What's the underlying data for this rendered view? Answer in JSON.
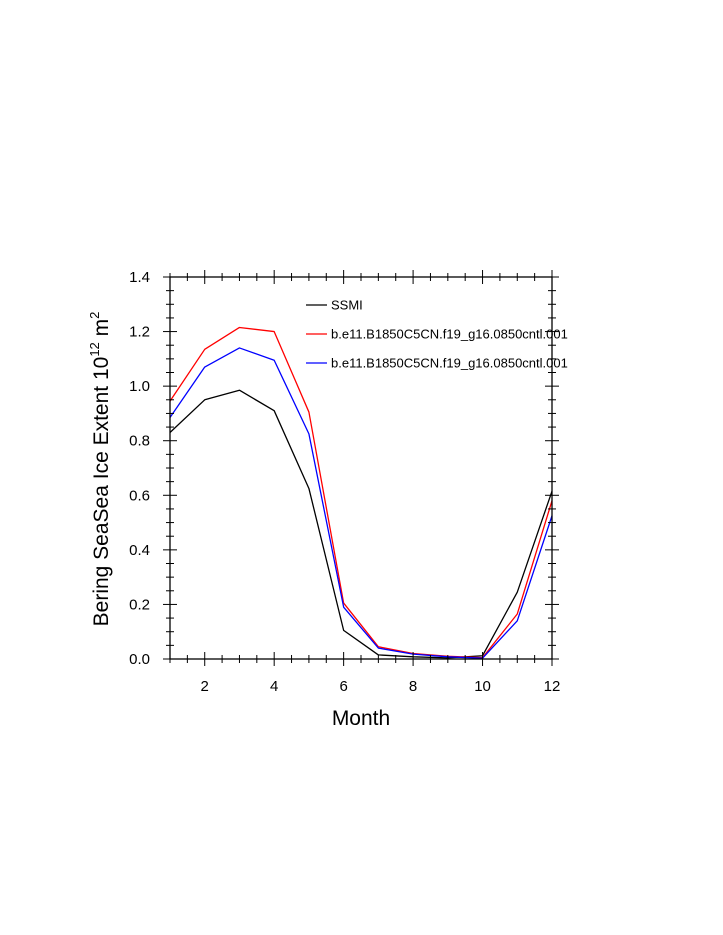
{
  "chart_data": {
    "type": "line",
    "title": "",
    "xlabel": "Month",
    "ylabel_main": "Bering SeaSea Ice Extent 10",
    "ylabel_exponent": "12",
    "ylabel_unit": " m",
    "ylabel_unit_exponent": "2",
    "xlim": [
      1,
      12
    ],
    "ylim": [
      0,
      1.4
    ],
    "x_ticks": [
      2,
      4,
      6,
      8,
      10,
      12
    ],
    "x_tick_labels": [
      "2",
      "4",
      "6",
      "8",
      "10",
      "12"
    ],
    "y_ticks": [
      0,
      0.2,
      0.4,
      0.6,
      0.8,
      1.0,
      1.2,
      1.4
    ],
    "y_tick_labels": [
      "0.0",
      "0.2",
      "0.4",
      "0.6",
      "0.8",
      "1.0",
      "1.2",
      "1.4"
    ],
    "legend_position": "top-right",
    "x": [
      1,
      2,
      3,
      4,
      5,
      6,
      7,
      8,
      9,
      10,
      11,
      12
    ],
    "series": [
      {
        "name": "SSMI",
        "color": "#000000",
        "values": [
          0.83,
          0.95,
          0.985,
          0.91,
          0.625,
          0.105,
          0.015,
          0.008,
          0.004,
          0.012,
          0.245,
          0.615
        ]
      },
      {
        "name": "b.e11.B1850C5CN.f19_g16.0850cntl.001",
        "color": "#ff0000",
        "values": [
          0.945,
          1.135,
          1.215,
          1.2,
          0.905,
          0.205,
          0.045,
          0.02,
          0.01,
          0.005,
          0.165,
          0.58
        ]
      },
      {
        "name": "b.e11.B1850C5CN.f19_g16.0850cntl.001",
        "color": "#0000ff",
        "values": [
          0.885,
          1.07,
          1.14,
          1.095,
          0.825,
          0.19,
          0.04,
          0.018,
          0.008,
          0.003,
          0.14,
          0.525
        ]
      }
    ]
  }
}
